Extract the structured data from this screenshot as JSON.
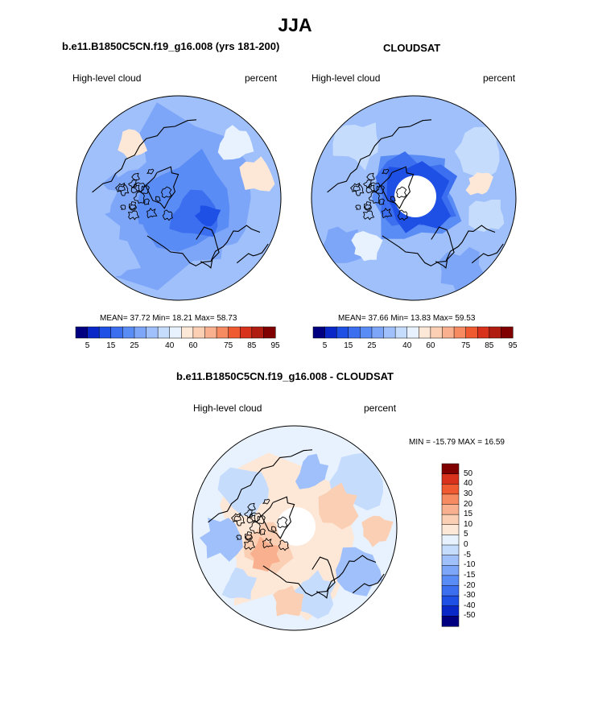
{
  "figure": {
    "season": "JJA",
    "colors": {
      "land_outline": "#000000",
      "pole_mask": "#ffffff",
      "map_border": "#000000"
    }
  },
  "panels": [
    {
      "title": "b.e11.B1850C5CN.f19_g16.008 (yrs 181-200)",
      "variable_label": "High-level cloud",
      "units_label": "percent",
      "stats_text": "MEAN=  37.72  Min=  18.21  Max=  58.73",
      "colorbar_ticks": [
        "5",
        "15",
        "25",
        "40",
        "60",
        "75",
        "85",
        "95"
      ]
    },
    {
      "title": "CLOUDSAT",
      "variable_label": "High-level cloud",
      "units_label": "percent",
      "stats_text": "MEAN=  37.66  Min=  13.83  Max=  59.53",
      "colorbar_ticks": [
        "5",
        "15",
        "25",
        "40",
        "60",
        "75",
        "85",
        "95"
      ]
    },
    {
      "title": "b.e11.B1850C5CN.f19_g16.008 - CLOUDSAT",
      "variable_label": "High-level cloud",
      "units_label": "percent",
      "minmax_text": "MIN = -15.79 MAX =  16.59",
      "colorbar_ticks": [
        "50",
        "40",
        "30",
        "20",
        "15",
        "10",
        "5",
        "0",
        "-5",
        "-10",
        "-15",
        "-20",
        "-30",
        "-40",
        "-50"
      ]
    }
  ],
  "chart_data": [
    {
      "type": "heatmap",
      "projection": "north polar stereographic",
      "title": "b.e11.B1850C5CN.f19_g16.008 (yrs 181-200)",
      "variable": "High-level cloud",
      "units": "percent",
      "mean": 37.72,
      "min": 18.21,
      "max": 58.73,
      "levels": [
        5,
        10,
        15,
        20,
        25,
        30,
        35,
        40,
        50,
        60,
        65,
        70,
        75,
        80,
        85,
        90,
        95
      ],
      "colors": [
        "#000080",
        "#0a28c8",
        "#1e50e6",
        "#3c6ef0",
        "#5a8cf5",
        "#7ea6f8",
        "#a0c0fb",
        "#c6dcfd",
        "#e8f2fe",
        "#fde8d8",
        "#fbcfb4",
        "#f9b08e",
        "#f68b62",
        "#f05a30",
        "#d8321c",
        "#b01c10",
        "#800000"
      ],
      "cbar_ticks": [
        5,
        15,
        25,
        40,
        60,
        75,
        85,
        95
      ]
    },
    {
      "type": "heatmap",
      "projection": "north polar stereographic",
      "title": "CLOUDSAT",
      "variable": "High-level cloud",
      "units": "percent",
      "mean": 37.66,
      "min": 13.83,
      "max": 59.53,
      "levels": [
        5,
        10,
        15,
        20,
        25,
        30,
        35,
        40,
        50,
        60,
        65,
        70,
        75,
        80,
        85,
        90,
        95
      ],
      "colors": [
        "#000080",
        "#0a28c8",
        "#1e50e6",
        "#3c6ef0",
        "#5a8cf5",
        "#7ea6f8",
        "#a0c0fb",
        "#c6dcfd",
        "#e8f2fe",
        "#fde8d8",
        "#fbcfb4",
        "#f9b08e",
        "#f68b62",
        "#f05a30",
        "#d8321c",
        "#b01c10",
        "#800000"
      ],
      "cbar_ticks": [
        5,
        15,
        25,
        40,
        60,
        75,
        85,
        95
      ]
    },
    {
      "type": "heatmap",
      "projection": "north polar stereographic",
      "title": "b.e11.B1850C5CN.f19_g16.008 - CLOUDSAT",
      "variable": "High-level cloud",
      "units": "percent",
      "min": -15.79,
      "max": 16.59,
      "levels": [
        -50,
        -40,
        -30,
        -20,
        -15,
        -10,
        -5,
        0,
        5,
        10,
        15,
        20,
        30,
        40,
        50
      ],
      "colors": [
        "#000080",
        "#0a28c8",
        "#1e50e6",
        "#3c6ef0",
        "#5a8cf5",
        "#7ea6f8",
        "#a0c0fb",
        "#c6dcfd",
        "#e8f2fe",
        "#fde8d8",
        "#fbcfb4",
        "#f9b08e",
        "#f68b62",
        "#f05a30",
        "#d8321c",
        "#800000"
      ],
      "cbar_ticks": [
        50,
        40,
        30,
        20,
        15,
        10,
        5,
        0,
        -5,
        -10,
        -15,
        -20,
        -30,
        -40,
        -50
      ]
    }
  ]
}
